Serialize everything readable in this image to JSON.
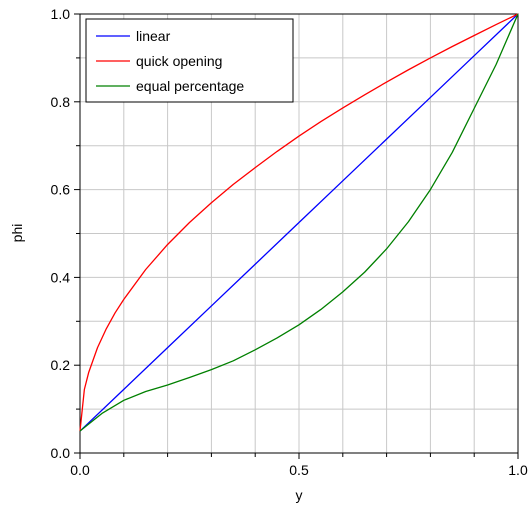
{
  "chart_data": {
    "type": "line",
    "title": "",
    "xlabel": "y",
    "ylabel": "phi",
    "xlim": [
      0,
      1
    ],
    "ylim": [
      0,
      1
    ],
    "x_ticks": [
      0,
      0.5,
      1
    ],
    "x_tick_labels": [
      "0.0",
      "0.5",
      "1.0"
    ],
    "y_ticks": [
      0,
      0.2,
      0.4,
      0.6,
      0.8,
      1.0
    ],
    "y_tick_labels": [
      "0.0",
      "0.2",
      "0.4",
      "0.6",
      "0.8",
      "1.0"
    ],
    "grid": true,
    "legend_position": "top-left",
    "series": [
      {
        "name": "linear",
        "color": "#0000ff",
        "x": [
          0,
          0.1,
          0.2,
          0.3,
          0.4,
          0.5,
          0.6,
          0.7,
          0.8,
          0.9,
          1.0
        ],
        "y": [
          0.05,
          0.145,
          0.24,
          0.335,
          0.43,
          0.525,
          0.62,
          0.715,
          0.81,
          0.905,
          1.0
        ]
      },
      {
        "name": "quick opening",
        "color": "#ff0000",
        "x": [
          0,
          0.01,
          0.02,
          0.04,
          0.06,
          0.08,
          0.1,
          0.15,
          0.2,
          0.25,
          0.3,
          0.35,
          0.4,
          0.45,
          0.5,
          0.55,
          0.6,
          0.65,
          0.7,
          0.75,
          0.8,
          0.85,
          0.9,
          0.95,
          1.0
        ],
        "y": [
          0.05,
          0.145,
          0.184,
          0.24,
          0.283,
          0.319,
          0.35,
          0.418,
          0.475,
          0.525,
          0.57,
          0.612,
          0.65,
          0.687,
          0.722,
          0.755,
          0.786,
          0.816,
          0.845,
          0.873,
          0.9,
          0.926,
          0.951,
          0.976,
          1.0
        ]
      },
      {
        "name": "equal percentage",
        "color": "#008000",
        "x": [
          0,
          0.05,
          0.1,
          0.15,
          0.2,
          0.25,
          0.3,
          0.35,
          0.4,
          0.45,
          0.5,
          0.55,
          0.6,
          0.65,
          0.7,
          0.75,
          0.8,
          0.85,
          0.9,
          0.95,
          1.0
        ],
        "y": [
          0.05,
          0.09,
          0.12,
          0.14,
          0.155,
          0.172,
          0.19,
          0.21,
          0.235,
          0.262,
          0.292,
          0.327,
          0.367,
          0.412,
          0.465,
          0.527,
          0.6,
          0.685,
          0.785,
          0.885,
          1.0
        ]
      }
    ]
  }
}
